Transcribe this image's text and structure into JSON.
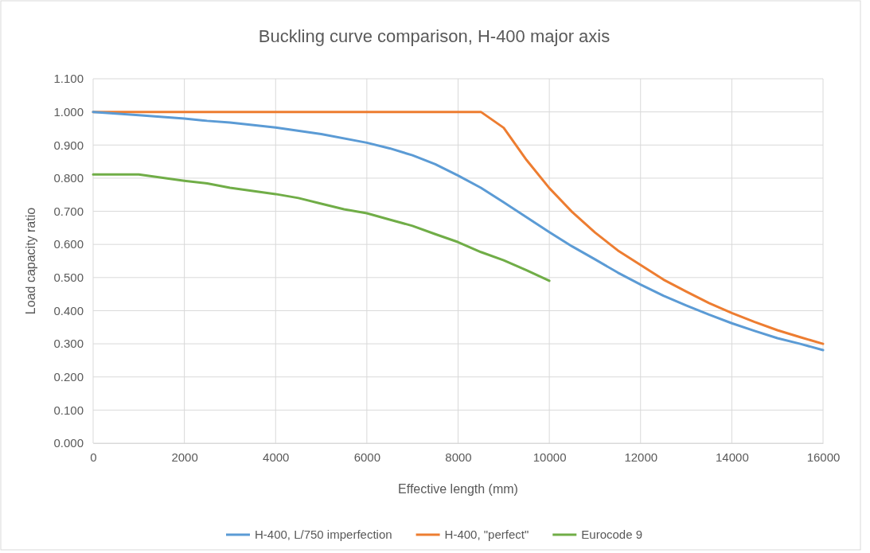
{
  "chart_data": {
    "type": "line",
    "title": "Buckling curve comparison, H-400 major axis",
    "xlabel": "Effective length (mm)",
    "ylabel": "Load capacity ratio",
    "xlim": [
      0,
      16000
    ],
    "xticks": [
      0,
      2000,
      4000,
      6000,
      8000,
      10000,
      12000,
      14000,
      16000
    ],
    "ylim": [
      0,
      1.1
    ],
    "yticks": [
      {
        "value": 0,
        "label": "0.000"
      },
      {
        "value": 0.1,
        "label": "0.100"
      },
      {
        "value": 0.2,
        "label": "0.200"
      },
      {
        "value": 0.3,
        "label": "0.300"
      },
      {
        "value": 0.4,
        "label": "0.400"
      },
      {
        "value": 0.5,
        "label": "0.500"
      },
      {
        "value": 0.6,
        "label": "0.600"
      },
      {
        "value": 0.7,
        "label": "0.700"
      },
      {
        "value": 0.8,
        "label": "0.800"
      },
      {
        "value": 0.9,
        "label": "0.900"
      },
      {
        "value": 1.0,
        "label": "1.000"
      },
      {
        "value": 1.1,
        "label": "1.100"
      }
    ],
    "grid": true,
    "legend": "bottom",
    "marker": "none",
    "line_style": "solid",
    "series": [
      {
        "name": "H-400, L/750 imperfection",
        "color": "#5b9bd5",
        "x": [
          0,
          1000,
          2000,
          2500,
          3000,
          4000,
          5000,
          6000,
          6500,
          7000,
          7500,
          8000,
          8500,
          9000,
          9500,
          10000,
          10500,
          11000,
          11500,
          12000,
          12500,
          13000,
          13500,
          14000,
          14500,
          15000,
          15500,
          16000
        ],
        "values": [
          1.0,
          0.99,
          0.98,
          0.973,
          0.968,
          0.953,
          0.933,
          0.907,
          0.89,
          0.869,
          0.842,
          0.808,
          0.771,
          0.727,
          0.682,
          0.637,
          0.594,
          0.555,
          0.515,
          0.479,
          0.445,
          0.416,
          0.388,
          0.362,
          0.339,
          0.317,
          0.3,
          0.281
        ]
      },
      {
        "name": "H-400, \"perfect\"",
        "color": "#ed7d31",
        "x": [
          0,
          8500,
          9000,
          9500,
          10000,
          10500,
          11000,
          11500,
          12000,
          12500,
          13000,
          13500,
          14000,
          14500,
          15000,
          15500,
          16000
        ],
        "values": [
          1.0,
          1.0,
          0.952,
          0.855,
          0.77,
          0.698,
          0.636,
          0.582,
          0.538,
          0.494,
          0.458,
          0.423,
          0.393,
          0.366,
          0.341,
          0.32,
          0.3
        ]
      },
      {
        "name": "Eurocode 9",
        "color": "#70ad47",
        "x": [
          0,
          1000,
          2000,
          2500,
          3000,
          4000,
          4500,
          5000,
          5500,
          6000,
          6500,
          7000,
          7500,
          8000,
          8500,
          9000,
          9500,
          10000
        ],
        "values": [
          0.811,
          0.811,
          0.792,
          0.784,
          0.771,
          0.752,
          0.74,
          0.723,
          0.706,
          0.694,
          0.675,
          0.656,
          0.631,
          0.607,
          0.577,
          0.552,
          0.522,
          0.49
        ]
      }
    ]
  }
}
